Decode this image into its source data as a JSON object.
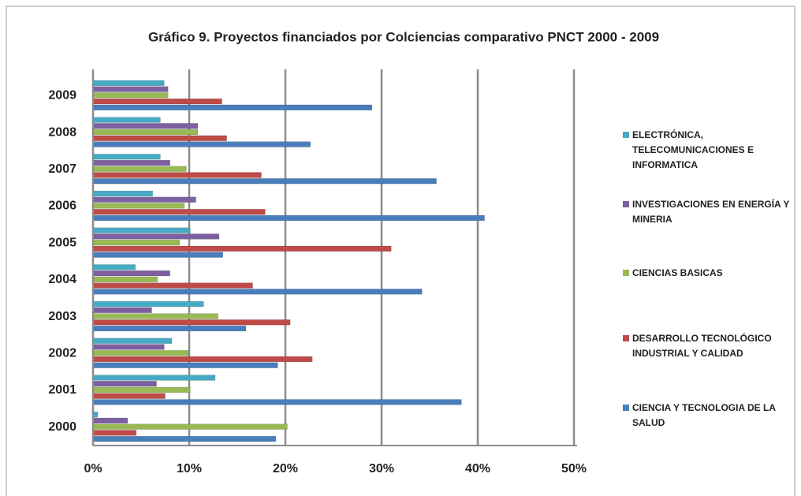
{
  "chart_data": {
    "type": "hbar",
    "title": "Gráfico 9. Proyectos financiados por Colciencias comparativo PNCT 2000 - 2009",
    "categories": [
      "2000",
      "2001",
      "2002",
      "2003",
      "2004",
      "2005",
      "2006",
      "2007",
      "2008",
      "2009"
    ],
    "series": [
      {
        "name": "ELECTRÓNICA, TELECOMUNICACIONES E INFORMATICA",
        "color": "#46aac5",
        "values": [
          0.5,
          12.7,
          8.2,
          11.5,
          4.4,
          10.1,
          6.2,
          7.0,
          7.0,
          7.4
        ]
      },
      {
        "name": "INVESTIGACIONES EN ENERGÍA Y MINERIA",
        "color": "#7d60a0",
        "values": [
          3.6,
          6.6,
          7.4,
          6.1,
          8.0,
          13.1,
          10.7,
          8.0,
          10.9,
          7.8
        ]
      },
      {
        "name": "CIENCIAS BASICAS",
        "color": "#98b954",
        "values": [
          20.2,
          10.1,
          9.9,
          13.0,
          6.7,
          9.0,
          9.5,
          9.7,
          10.9,
          7.8
        ]
      },
      {
        "name": "DESARROLLO TECNOLÓGICO INDUSTRIAL Y CALIDAD",
        "color": "#be4b48",
        "values": [
          4.5,
          7.5,
          22.8,
          20.5,
          16.6,
          31.0,
          17.9,
          17.5,
          13.9,
          13.4
        ]
      },
      {
        "name": "CIENCIA Y TECNOLOGIA DE LA SALUD",
        "color": "#4a7ebb",
        "values": [
          19.0,
          38.3,
          19.2,
          15.9,
          34.2,
          13.5,
          40.7,
          35.7,
          22.6,
          29.0
        ]
      }
    ],
    "xlim": [
      0,
      50
    ],
    "xticks": [
      {
        "value": 0,
        "label": "0%"
      },
      {
        "value": 10,
        "label": "10%"
      },
      {
        "value": 20,
        "label": "20%"
      },
      {
        "value": 30,
        "label": "30%"
      },
      {
        "value": 40,
        "label": "40%"
      },
      {
        "value": 50,
        "label": "50%"
      }
    ],
    "grid": true
  }
}
